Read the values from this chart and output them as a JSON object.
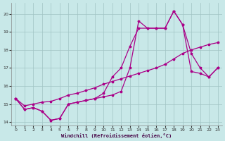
{
  "background_color": "#c8e8e8",
  "grid_color": "#a0c4c4",
  "line_color": "#aa0088",
  "xlabel": "Windchill (Refroidissement éolien,°C)",
  "xlim": [
    -0.5,
    23.5
  ],
  "ylim": [
    13.8,
    20.6
  ],
  "yticks": [
    14,
    15,
    16,
    17,
    18,
    19,
    20
  ],
  "xticks": [
    0,
    1,
    2,
    3,
    4,
    5,
    6,
    7,
    8,
    9,
    10,
    11,
    12,
    13,
    14,
    15,
    16,
    17,
    18,
    19,
    20,
    21,
    22,
    23
  ],
  "series1_x": [
    0,
    1,
    2,
    3,
    4,
    5,
    6,
    7,
    8,
    9,
    10,
    11,
    12,
    13,
    14,
    15,
    16,
    17,
    18,
    19,
    20,
    21,
    22,
    23
  ],
  "series1_y": [
    15.3,
    14.7,
    14.8,
    14.6,
    14.1,
    14.2,
    15.0,
    15.1,
    15.2,
    15.3,
    15.4,
    15.5,
    15.7,
    17.0,
    19.6,
    19.2,
    19.2,
    19.2,
    20.15,
    19.4,
    16.8,
    16.7,
    16.5,
    17.0
  ],
  "series2_x": [
    0,
    1,
    2,
    3,
    4,
    5,
    6,
    7,
    8,
    9,
    10,
    11,
    12,
    13,
    14,
    15,
    16,
    17,
    18,
    19,
    20,
    21,
    22,
    23
  ],
  "series2_y": [
    15.3,
    14.7,
    14.8,
    14.6,
    14.1,
    14.2,
    15.0,
    15.1,
    15.2,
    15.3,
    15.6,
    16.5,
    17.0,
    18.2,
    19.2,
    19.2,
    19.2,
    19.2,
    20.15,
    19.4,
    17.8,
    17.0,
    16.5,
    17.0
  ],
  "series3_x": [
    0,
    1,
    2,
    3,
    4,
    5,
    6,
    7,
    8,
    9,
    10,
    11,
    12,
    13,
    14,
    15,
    16,
    17,
    18,
    19,
    20,
    21,
    22,
    23
  ],
  "series3_y": [
    15.3,
    14.9,
    15.0,
    15.1,
    15.15,
    15.3,
    15.5,
    15.6,
    15.75,
    15.9,
    16.1,
    16.25,
    16.4,
    16.55,
    16.7,
    16.85,
    17.0,
    17.2,
    17.5,
    17.8,
    18.0,
    18.15,
    18.3,
    18.4
  ]
}
